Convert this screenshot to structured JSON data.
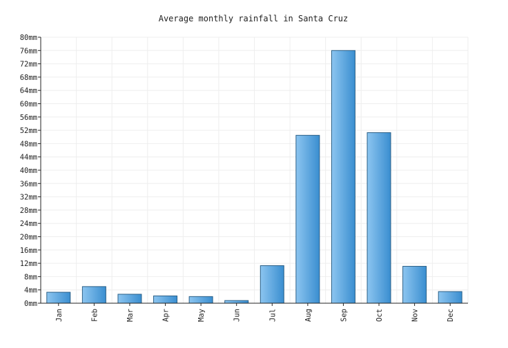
{
  "chart_data": {
    "type": "bar",
    "title": "Average monthly rainfall in Santa Cruz",
    "xlabel": "",
    "ylabel": "",
    "categories": [
      "Jan",
      "Feb",
      "Mar",
      "Apr",
      "May",
      "Jun",
      "Jul",
      "Aug",
      "Sep",
      "Oct",
      "Nov",
      "Dec"
    ],
    "values": [
      3.3,
      5.0,
      2.7,
      2.2,
      2.0,
      0.8,
      11.3,
      50.5,
      76.0,
      51.3,
      11.1,
      3.5
    ],
    "unit": "mm",
    "ylim": [
      0,
      80
    ],
    "yticks": [
      "0mm",
      "4mm",
      "8mm",
      "12mm",
      "16mm",
      "20mm",
      "24mm",
      "28mm",
      "32mm",
      "36mm",
      "40mm",
      "44mm",
      "48mm",
      "52mm",
      "56mm",
      "60mm",
      "64mm",
      "68mm",
      "72mm",
      "76mm",
      "80mm"
    ],
    "grid": true,
    "legend": "none",
    "colors": {
      "bar_light": "#8cc5f0",
      "bar_dark": "#3a8ed0",
      "bar_edge": "#2a5f86"
    }
  }
}
